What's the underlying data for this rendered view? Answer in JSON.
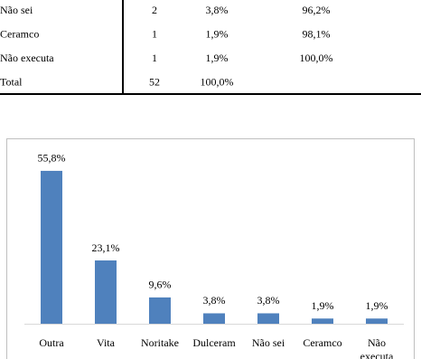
{
  "table": {
    "rows": [
      [
        "Não sei",
        "2",
        "3,8%",
        "96,2%"
      ],
      [
        "Ceramco",
        "1",
        "1,9%",
        "98,1%"
      ],
      [
        "Não executa",
        "1",
        "1,9%",
        "100,0%"
      ],
      [
        "Total",
        "52",
        "100,0%"
      ]
    ]
  },
  "chart_data": {
    "type": "bar",
    "categories": [
      "Outra",
      "Vita",
      "Noritake",
      "Dulceram",
      "Não sei",
      "Ceramco",
      "Não executa"
    ],
    "values": [
      55.8,
      23.1,
      9.6,
      3.8,
      3.8,
      1.9,
      1.9
    ],
    "value_labels": [
      "55,8%",
      "23,1%",
      "9,6%",
      "3,8%",
      "3,8%",
      "1,9%",
      "1,9%"
    ],
    "color": "#4f81bd"
  }
}
